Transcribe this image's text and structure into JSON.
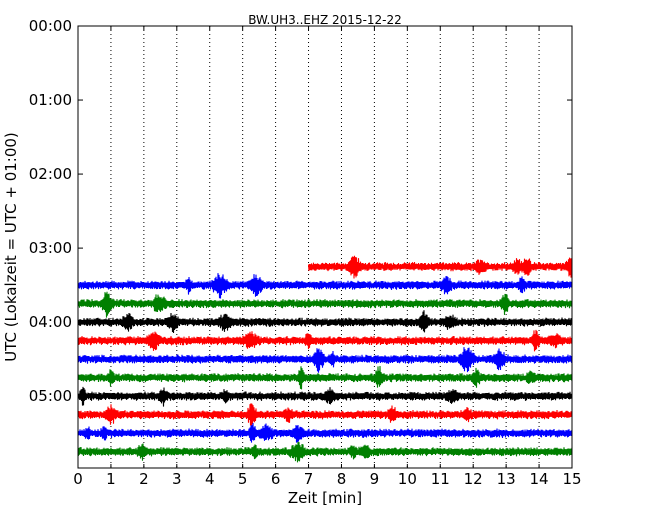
{
  "chart_data": {
    "type": "line",
    "title": "BW.UH3..EHZ 2015-12-22",
    "xlabel": "Zeit  [min]",
    "ylabel": "UTC (Lokalzeit = UTC + 01:00)",
    "xlim": [
      0,
      15
    ],
    "ylim_hours": [
      0,
      5.97
    ],
    "x_ticks": [
      "0",
      "1",
      "2",
      "3",
      "4",
      "5",
      "6",
      "7",
      "8",
      "9",
      "10",
      "11",
      "12",
      "13",
      "14",
      "15"
    ],
    "y_ticks": [
      "00:00",
      "01:00",
      "02:00",
      "03:00",
      "04:00",
      "05:00"
    ],
    "vertical_grid": "dotted",
    "colors_cycle": [
      "#ff0000",
      "#0000ff",
      "#008000",
      "#000000"
    ],
    "series": [
      {
        "start_time": "03:15",
        "color": "#ff0000",
        "start_min": 7.0,
        "end_min": 15
      },
      {
        "start_time": "03:30",
        "color": "#0000ff",
        "start_min": 0,
        "end_min": 15
      },
      {
        "start_time": "03:45",
        "color": "#008000",
        "start_min": 0,
        "end_min": 15
      },
      {
        "start_time": "04:00",
        "color": "#000000",
        "start_min": 0,
        "end_min": 15
      },
      {
        "start_time": "04:15",
        "color": "#ff0000",
        "start_min": 0,
        "end_min": 15
      },
      {
        "start_time": "04:30",
        "color": "#0000ff",
        "start_min": 0,
        "end_min": 15
      },
      {
        "start_time": "04:45",
        "color": "#008000",
        "start_min": 0,
        "end_min": 15
      },
      {
        "start_time": "05:00",
        "color": "#000000",
        "start_min": 0,
        "end_min": 15
      },
      {
        "start_time": "05:15",
        "color": "#ff0000",
        "start_min": 0,
        "end_min": 15
      },
      {
        "start_time": "05:30",
        "color": "#0000ff",
        "start_min": 0,
        "end_min": 15
      },
      {
        "start_time": "05:45",
        "color": "#008000",
        "start_min": 0,
        "end_min": 15
      }
    ]
  }
}
